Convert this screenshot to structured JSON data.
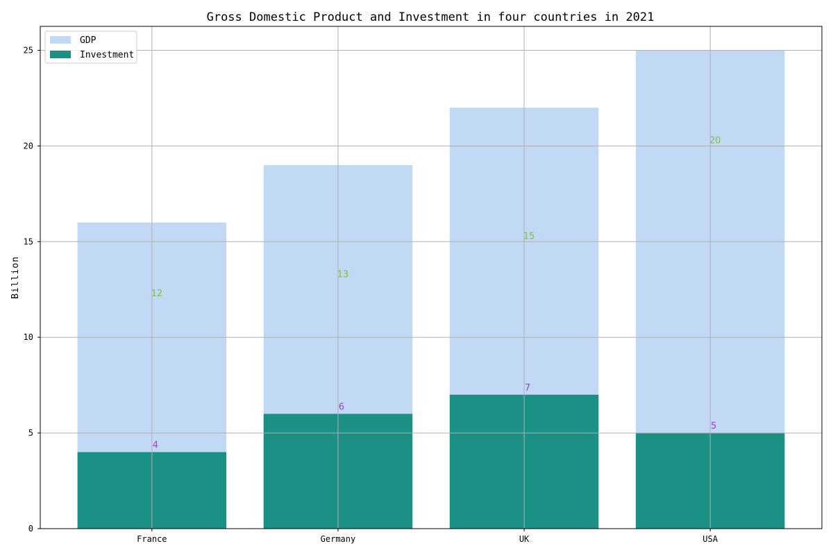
{
  "chart_data": {
    "type": "bar",
    "stacked": false,
    "title": "Gross Domestic Product and Investment in four countries in 2021",
    "xlabel": "",
    "ylabel": "Billion",
    "categories": [
      "France",
      "Germany",
      "UK",
      "USA"
    ],
    "series": [
      {
        "name": "GDP",
        "values": [
          16,
          19,
          22,
          25
        ],
        "color": "#c2d9f5",
        "labels": [
          "12",
          "13",
          "15",
          "20"
        ],
        "label_color": "#7ac142"
      },
      {
        "name": "Investment",
        "values": [
          4,
          6,
          7,
          5
        ],
        "color": "#1b9084",
        "labels": [
          "4",
          "6",
          "7",
          "5"
        ],
        "label_color": "#a040d0"
      }
    ],
    "ylim": [
      0,
      26.25
    ],
    "yticks": [
      0,
      5,
      10,
      15,
      20,
      25
    ],
    "grid": true,
    "legend_position": "top-left"
  }
}
